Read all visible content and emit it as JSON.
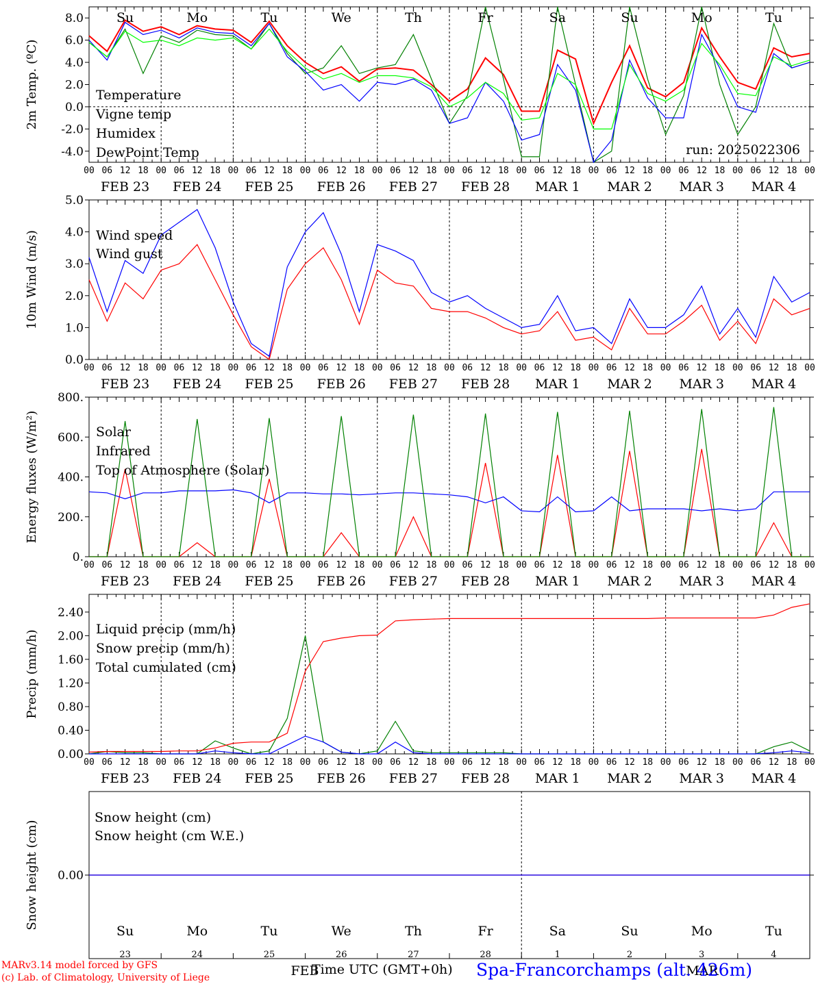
{
  "chart_data": [
    {
      "type": "line",
      "ylabel": "2m Temp. (ºC)",
      "ylim": [
        -5,
        9
      ],
      "yticks": [
        "8.0",
        "6.0",
        "4.0",
        "2.0",
        "0.0",
        "-2.0",
        "-4.0"
      ],
      "ytick_values": [
        8,
        6,
        4,
        2,
        0,
        -2,
        -4
      ],
      "zero_line": true,
      "annotation": "run: 2025022306",
      "weekdays": [
        "Su",
        "Mo",
        "Tu",
        "We",
        "Th",
        "Fr",
        "Sa",
        "Su",
        "Mo",
        "Tu"
      ],
      "x_hours": [
        0,
        6,
        12,
        18,
        24,
        30,
        36,
        42,
        48,
        54,
        60,
        66,
        72,
        78,
        84,
        90,
        96,
        102,
        108,
        114,
        120,
        126,
        132,
        138,
        144,
        150,
        156,
        162,
        168,
        174,
        180,
        186,
        192,
        198,
        204,
        210,
        216,
        222,
        228,
        234,
        240
      ],
      "series": [
        {
          "name": "Temperature",
          "color": "#ff0000",
          "values": [
            6.4,
            5.0,
            7.8,
            6.8,
            7.2,
            6.5,
            7.3,
            7.0,
            6.9,
            5.8,
            7.7,
            5.5,
            4.0,
            3.0,
            3.6,
            2.3,
            3.4,
            3.5,
            3.3,
            2.0,
            0.5,
            1.6,
            4.4,
            2.9,
            -0.4,
            -0.4,
            5.1,
            4.3,
            -1.5,
            2.2,
            5.5,
            1.7,
            0.9,
            2.2,
            7.1,
            4.5,
            2.2,
            1.6,
            5.3,
            4.5,
            4.8
          ]
        },
        {
          "name": "Vigne temp",
          "color": "#008000",
          "values": [
            5.8,
            4.5,
            7.0,
            3.0,
            6.4,
            5.8,
            6.9,
            6.5,
            6.4,
            5.2,
            7.5,
            4.8,
            3.0,
            3.5,
            5.5,
            3.0,
            3.5,
            3.8,
            6.5,
            2.5,
            -1.5,
            1.0,
            9.0,
            2.5,
            -4.5,
            -4.5,
            9.0,
            2.0,
            -5.0,
            -4.0,
            9.0,
            2.5,
            -2.5,
            1.0,
            9.0,
            2.0,
            -2.5,
            0.0,
            7.5,
            3.5,
            4.0
          ]
        },
        {
          "name": "Humidex",
          "color": "#0000ff",
          "values": [
            6.0,
            4.2,
            7.6,
            6.5,
            6.9,
            6.2,
            7.1,
            6.7,
            6.6,
            5.5,
            7.5,
            4.5,
            3.2,
            1.5,
            2.0,
            0.5,
            2.2,
            2.0,
            2.5,
            1.5,
            -1.5,
            -1.0,
            2.2,
            0.5,
            -3.0,
            -2.5,
            3.8,
            1.5,
            -5.0,
            -3.0,
            4.2,
            0.8,
            -1.0,
            -1.0,
            6.5,
            3.5,
            0.0,
            -0.5,
            4.8,
            3.5,
            4.0
          ]
        },
        {
          "name": "DewPoint Temp",
          "color": "#00ff00",
          "values": [
            5.8,
            4.5,
            6.8,
            5.8,
            6.0,
            5.5,
            6.2,
            6.0,
            6.2,
            5.2,
            7.0,
            5.0,
            3.5,
            2.5,
            3.0,
            2.2,
            2.8,
            2.8,
            2.6,
            1.8,
            0.0,
            0.8,
            2.2,
            1.2,
            -1.2,
            -1.0,
            3.0,
            2.0,
            -2.0,
            -2.0,
            3.8,
            1.2,
            0.5,
            1.5,
            5.7,
            3.8,
            1.2,
            1.0,
            4.5,
            3.7,
            4.2
          ]
        }
      ]
    },
    {
      "type": "line",
      "ylabel": "10m Wind (m/s)",
      "ylim": [
        0,
        5
      ],
      "yticks": [
        "5.0",
        "4.0",
        "3.0",
        "2.0",
        "1.0",
        "0.0"
      ],
      "ytick_values": [
        5,
        4,
        3,
        2,
        1,
        0
      ],
      "x_hours": [
        0,
        6,
        12,
        18,
        24,
        30,
        36,
        42,
        48,
        54,
        60,
        66,
        72,
        78,
        84,
        90,
        96,
        102,
        108,
        114,
        120,
        126,
        132,
        138,
        144,
        150,
        156,
        162,
        168,
        174,
        180,
        186,
        192,
        198,
        204,
        210,
        216,
        222,
        228,
        234,
        240
      ],
      "series": [
        {
          "name": "Wind speed",
          "color": "#ff0000",
          "values": [
            2.5,
            1.2,
            2.4,
            1.9,
            2.8,
            3.0,
            3.6,
            2.5,
            1.4,
            0.4,
            0.0,
            2.2,
            3.0,
            3.5,
            2.5,
            1.1,
            2.8,
            2.4,
            2.3,
            1.6,
            1.5,
            1.5,
            1.3,
            1.0,
            0.8,
            0.9,
            1.5,
            0.6,
            0.7,
            0.3,
            1.6,
            0.8,
            0.8,
            1.2,
            1.7,
            0.6,
            1.2,
            0.5,
            1.9,
            1.4,
            1.6
          ]
        },
        {
          "name": "Wind gust",
          "color": "#0000ff",
          "values": [
            3.2,
            1.5,
            3.1,
            2.7,
            3.9,
            4.3,
            4.7,
            3.5,
            1.8,
            0.5,
            0.1,
            2.9,
            4.0,
            4.6,
            3.3,
            1.5,
            3.6,
            3.4,
            3.1,
            2.1,
            1.8,
            2.0,
            1.6,
            1.3,
            1.0,
            1.1,
            2.0,
            0.9,
            1.0,
            0.5,
            1.9,
            1.0,
            1.0,
            1.4,
            2.3,
            0.8,
            1.6,
            0.7,
            2.6,
            1.8,
            2.1
          ]
        }
      ]
    },
    {
      "type": "line",
      "ylabel": "Energy fluxes (W/m²)",
      "ylim": [
        0,
        800
      ],
      "yticks": [
        "800.",
        "600.",
        "400.",
        "200.",
        "0."
      ],
      "ytick_values": [
        800,
        600,
        400,
        200,
        0
      ],
      "x_hours": [
        0,
        6,
        12,
        18,
        24,
        30,
        36,
        42,
        48,
        54,
        60,
        66,
        72,
        78,
        84,
        90,
        96,
        102,
        108,
        114,
        120,
        126,
        132,
        138,
        144,
        150,
        156,
        162,
        168,
        174,
        180,
        186,
        192,
        198,
        204,
        210,
        216,
        222,
        228,
        234,
        240
      ],
      "series": [
        {
          "name": "Solar",
          "color": "#ff0000",
          "values": [
            0,
            0,
            440,
            0,
            0,
            0,
            70,
            0,
            0,
            0,
            390,
            0,
            0,
            0,
            120,
            0,
            0,
            0,
            200,
            0,
            0,
            0,
            470,
            0,
            0,
            0,
            510,
            0,
            0,
            0,
            530,
            0,
            0,
            0,
            540,
            0,
            0,
            0,
            170,
            0,
            0
          ]
        },
        {
          "name": "Infrared",
          "color": "#0000ff",
          "values": [
            325,
            320,
            290,
            320,
            320,
            330,
            330,
            330,
            335,
            320,
            270,
            320,
            320,
            315,
            315,
            310,
            315,
            320,
            320,
            315,
            310,
            300,
            270,
            300,
            230,
            225,
            300,
            225,
            230,
            300,
            230,
            240,
            240,
            240,
            230,
            240,
            230,
            240,
            325,
            325,
            325
          ]
        },
        {
          "name": "Top of Atmosphere (Solar)",
          "color": "#008000",
          "values": [
            0,
            0,
            680,
            0,
            0,
            0,
            690,
            0,
            0,
            0,
            695,
            0,
            0,
            0,
            705,
            0,
            0,
            0,
            712,
            0,
            0,
            0,
            718,
            0,
            0,
            0,
            726,
            0,
            0,
            0,
            732,
            0,
            0,
            0,
            740,
            0,
            0,
            0,
            750,
            0,
            0
          ]
        }
      ]
    },
    {
      "type": "line",
      "ylabel": "Precip (mm/h)",
      "ylim": [
        0,
        2.7
      ],
      "yticks": [
        "2.40",
        "2.00",
        "1.60",
        "1.20",
        "0.80",
        "0.40",
        "0.00"
      ],
      "ytick_values": [
        2.4,
        2.0,
        1.6,
        1.2,
        0.8,
        0.4,
        0.0
      ],
      "x_hours": [
        0,
        6,
        12,
        18,
        24,
        30,
        36,
        42,
        48,
        54,
        60,
        66,
        72,
        78,
        84,
        90,
        96,
        102,
        108,
        114,
        120,
        126,
        132,
        138,
        144,
        150,
        156,
        162,
        168,
        174,
        180,
        186,
        192,
        198,
        204,
        210,
        216,
        222,
        228,
        234,
        240
      ],
      "series": [
        {
          "name": "Liquid precip (mm/h)",
          "color": "#008000",
          "values": [
            0,
            0.04,
            0.02,
            0.02,
            0,
            0,
            0,
            0.22,
            0.1,
            0,
            0.05,
            0.6,
            2.0,
            0.2,
            0.03,
            0,
            0.05,
            0.55,
            0.05,
            0.02,
            0.02,
            0.02,
            0.02,
            0.02,
            0,
            0,
            0,
            0,
            0,
            0,
            0,
            0,
            0,
            0,
            0,
            0,
            0,
            0,
            0.12,
            0.2,
            0.05
          ]
        },
        {
          "name": "Snow precip (mm/h)",
          "color": "#0000ff",
          "values": [
            0,
            0,
            0,
            0,
            0,
            0,
            0,
            0.05,
            0.02,
            0,
            0,
            0.15,
            0.3,
            0.2,
            0.03,
            0,
            0,
            0.2,
            0.02,
            0,
            0,
            0,
            0,
            0,
            0,
            0,
            0,
            0,
            0,
            0,
            0,
            0,
            0,
            0,
            0,
            0,
            0,
            0,
            0.02,
            0.05,
            0.02
          ]
        },
        {
          "name": "Total cumulated (cm)",
          "color": "#ff0000",
          "values": [
            0.03,
            0.04,
            0.04,
            0.04,
            0.04,
            0.05,
            0.05,
            0.1,
            0.18,
            0.2,
            0.2,
            0.35,
            1.4,
            1.9,
            1.96,
            2.0,
            2.01,
            2.25,
            2.27,
            2.28,
            2.29,
            2.29,
            2.29,
            2.29,
            2.29,
            2.29,
            2.29,
            2.29,
            2.29,
            2.29,
            2.29,
            2.29,
            2.3,
            2.3,
            2.3,
            2.3,
            2.3,
            2.3,
            2.35,
            2.48,
            2.54
          ]
        }
      ]
    },
    {
      "type": "line",
      "ylabel": "Snow height (cm)",
      "ylim": [
        -1,
        1
      ],
      "yticks": [
        "0.00"
      ],
      "ytick_values": [
        0
      ],
      "x_hours": [
        0,
        240
      ],
      "series": [
        {
          "name": "Snow height (cm)",
          "color": "#ff0000",
          "values": [
            0,
            0
          ]
        },
        {
          "name": "Snow height (cm W.E.)",
          "color": "#0000ff",
          "values": [
            0,
            0
          ]
        }
      ],
      "weekdays": [
        "Su",
        "Mo",
        "Tu",
        "We",
        "Th",
        "Fr",
        "Sa",
        "Su",
        "Mo",
        "Tu"
      ],
      "daynums": [
        "23",
        "24",
        "25",
        "26",
        "27",
        "28",
        "1",
        "2",
        "3",
        "4"
      ],
      "months": [
        "FEB",
        "MAR"
      ]
    }
  ],
  "axis": {
    "hour_labels": [
      "00",
      "06",
      "12",
      "18"
    ],
    "end_label": "00",
    "dates": [
      "FEB 23",
      "FEB 24",
      "FEB 25",
      "FEB 26",
      "FEB 27",
      "FEB 28",
      "MAR  1",
      "MAR  2",
      "MAR  3",
      "MAR  4"
    ],
    "weekend_color": "#ff0000",
    "weekday_color": "#000000"
  },
  "footer": {
    "model_line": "MARv3.14 model forced by GFS",
    "lab_line": "(c) Lab. of Climatology, University of Liege",
    "xlabel": "Time UTC (GMT+0h)",
    "station": "Spa-Francorchamps (alt. 426m)"
  }
}
